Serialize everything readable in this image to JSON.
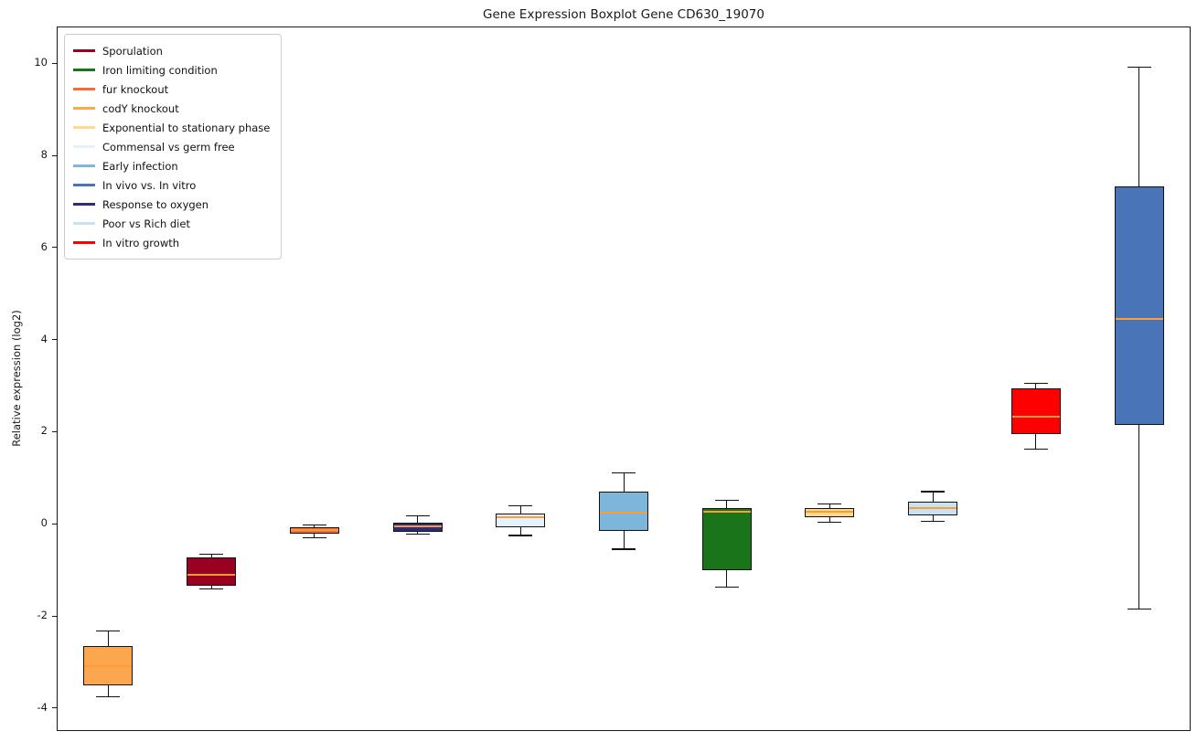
{
  "figure": {
    "title": "Gene Expression Boxplot Gene CD630_19070",
    "ylabel": "Relative expression (log2)"
  },
  "chart_data": {
    "type": "boxplot",
    "title": "Gene Expression Boxplot Gene CD630_19070",
    "xlabel": "",
    "ylabel": "Relative expression (log2)",
    "ylim": [
      -4.5,
      10.8
    ],
    "yticks": [
      -4,
      -2,
      0,
      2,
      4,
      6,
      8,
      10
    ],
    "grid": false,
    "x_tick_labels": [],
    "legend_position": "upper left",
    "median_color": "#ff9c33",
    "box_edge_color": "#111111",
    "legend": [
      {
        "label": "Sporulation",
        "color": "#990022"
      },
      {
        "label": "Iron limiting condition",
        "color": "#1a741a"
      },
      {
        "label": "fur knockout",
        "color": "#fb6a35"
      },
      {
        "label": "codY knockout",
        "color": "#fca64f"
      },
      {
        "label": "Exponential to stationary phase",
        "color": "#ffd98c"
      },
      {
        "label": "Commensal vs germ free",
        "color": "#e3f2fb"
      },
      {
        "label": "Early infection",
        "color": "#7db6da"
      },
      {
        "label": "In vivo vs. In vitro",
        "color": "#4a74b8"
      },
      {
        "label": "Response to oxygen",
        "color": "#2b2b80"
      },
      {
        "label": "Poor vs Rich diet",
        "color": "#c6e2f3"
      },
      {
        "label": "In vitro growth",
        "color": "#ff0000"
      }
    ],
    "boxes": [
      {
        "label": "codY knockout",
        "color": "#fca64f",
        "whislo": -3.76,
        "q1": -3.5,
        "med": -3.1,
        "q3": -2.65,
        "whishi": -2.33
      },
      {
        "label": "Sporulation",
        "color": "#990022",
        "whislo": -1.42,
        "q1": -1.35,
        "med": -1.1,
        "q3": -0.73,
        "whishi": -0.66
      },
      {
        "label": "fur knockout",
        "color": "#fb6a35",
        "whislo": -0.3,
        "q1": -0.22,
        "med": -0.14,
        "q3": -0.07,
        "whishi": -0.02
      },
      {
        "label": "Response to oxygen",
        "color": "#2b2b80",
        "whislo": -0.22,
        "q1": -0.18,
        "med": -0.05,
        "q3": 0.03,
        "whishi": 0.18
      },
      {
        "label": "Commensal vs germ free",
        "color": "#e3f2fb",
        "whislo": -0.25,
        "q1": -0.08,
        "med": 0.15,
        "q3": 0.22,
        "whishi": 0.4
      },
      {
        "label": "Early infection",
        "color": "#7db6da",
        "whislo": -0.55,
        "q1": -0.15,
        "med": 0.25,
        "q3": 0.7,
        "whishi": 1.1
      },
      {
        "label": "Iron limiting condition",
        "color": "#1a741a",
        "whislo": -1.38,
        "q1": -1.0,
        "med": 0.27,
        "q3": 0.35,
        "whishi": 0.52
      },
      {
        "label": "Exponential to stationary phase",
        "color": "#ffd98c",
        "whislo": 0.03,
        "q1": 0.15,
        "med": 0.27,
        "q3": 0.35,
        "whishi": 0.43
      },
      {
        "label": "Poor vs Rich diet",
        "color": "#c6e2f3",
        "whislo": 0.05,
        "q1": 0.18,
        "med": 0.35,
        "q3": 0.48,
        "whishi": 0.7
      },
      {
        "label": "In vitro growth",
        "color": "#ff0000",
        "whislo": 1.62,
        "q1": 1.95,
        "med": 2.32,
        "q3": 2.95,
        "whishi": 3.05
      },
      {
        "label": "In vivo vs. In vitro",
        "color": "#4a74b8",
        "whislo": -1.85,
        "q1": 2.15,
        "med": 4.45,
        "q3": 7.32,
        "whishi": 9.92
      }
    ]
  }
}
